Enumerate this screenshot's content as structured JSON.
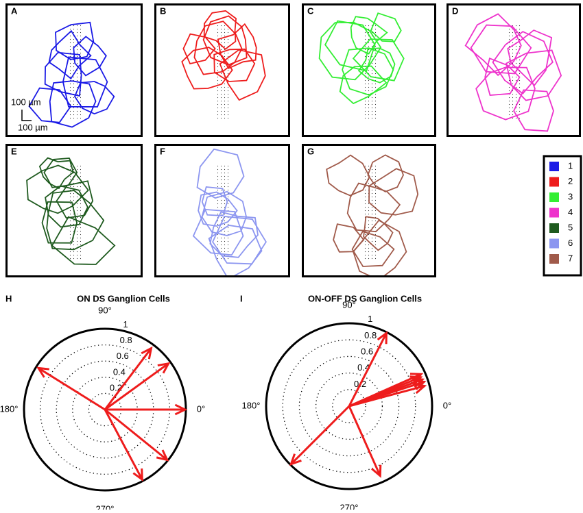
{
  "panels": [
    "A",
    "B",
    "C",
    "D",
    "E",
    "F",
    "G"
  ],
  "legend": [
    {
      "label": "1",
      "color": "#1a1ae6"
    },
    {
      "label": "2",
      "color": "#ee1c1c"
    },
    {
      "label": "3",
      "color": "#33ee33"
    },
    {
      "label": "4",
      "color": "#ee33cc"
    },
    {
      "label": "5",
      "color": "#1e5a1e"
    },
    {
      "label": "6",
      "color": "#8c96f0"
    },
    {
      "label": "7",
      "color": "#a05a4a"
    }
  ],
  "scale_bar": {
    "vertical": "100 µm",
    "horizontal": "100 µm"
  },
  "chart_data": [
    {
      "type": "polar",
      "panel_label": "H",
      "title": "ON DS Ganglion Cells",
      "color": "#ee1c1c",
      "theta": [
        148,
        53,
        36,
        0,
        321,
        298
      ],
      "values": [
        0.97,
        0.95,
        0.97,
        0.99,
        0.99,
        0.98
      ],
      "rlim": [
        0,
        1
      ],
      "rticks": [
        0.2,
        0.4,
        0.6,
        0.8,
        1
      ],
      "thetaticks": [
        {
          "value": 90,
          "label": "90°"
        },
        {
          "value": 180,
          "label": "180°"
        },
        {
          "value": 270,
          "label": "270°"
        },
        {
          "value": 0,
          "label": "0°"
        }
      ]
    },
    {
      "type": "polar",
      "panel_label": "I",
      "title": "ON-OFF DS Ganglion Cells",
      "color": "#ee1c1c",
      "theta": [
        63,
        15,
        18,
        20,
        22,
        24,
        225,
        294
      ],
      "values": [
        0.99,
        0.94,
        0.95,
        0.94,
        0.93,
        0.95,
        0.99,
        0.92
      ],
      "rlim": [
        0,
        1
      ],
      "rticks": [
        0.2,
        0.4,
        0.6,
        0.8,
        1
      ],
      "thetaticks": [
        {
          "value": 90,
          "label": "90°"
        },
        {
          "value": 180,
          "label": "180°"
        },
        {
          "value": 270,
          "label": "270°"
        },
        {
          "value": 0,
          "label": "0°"
        }
      ]
    }
  ]
}
